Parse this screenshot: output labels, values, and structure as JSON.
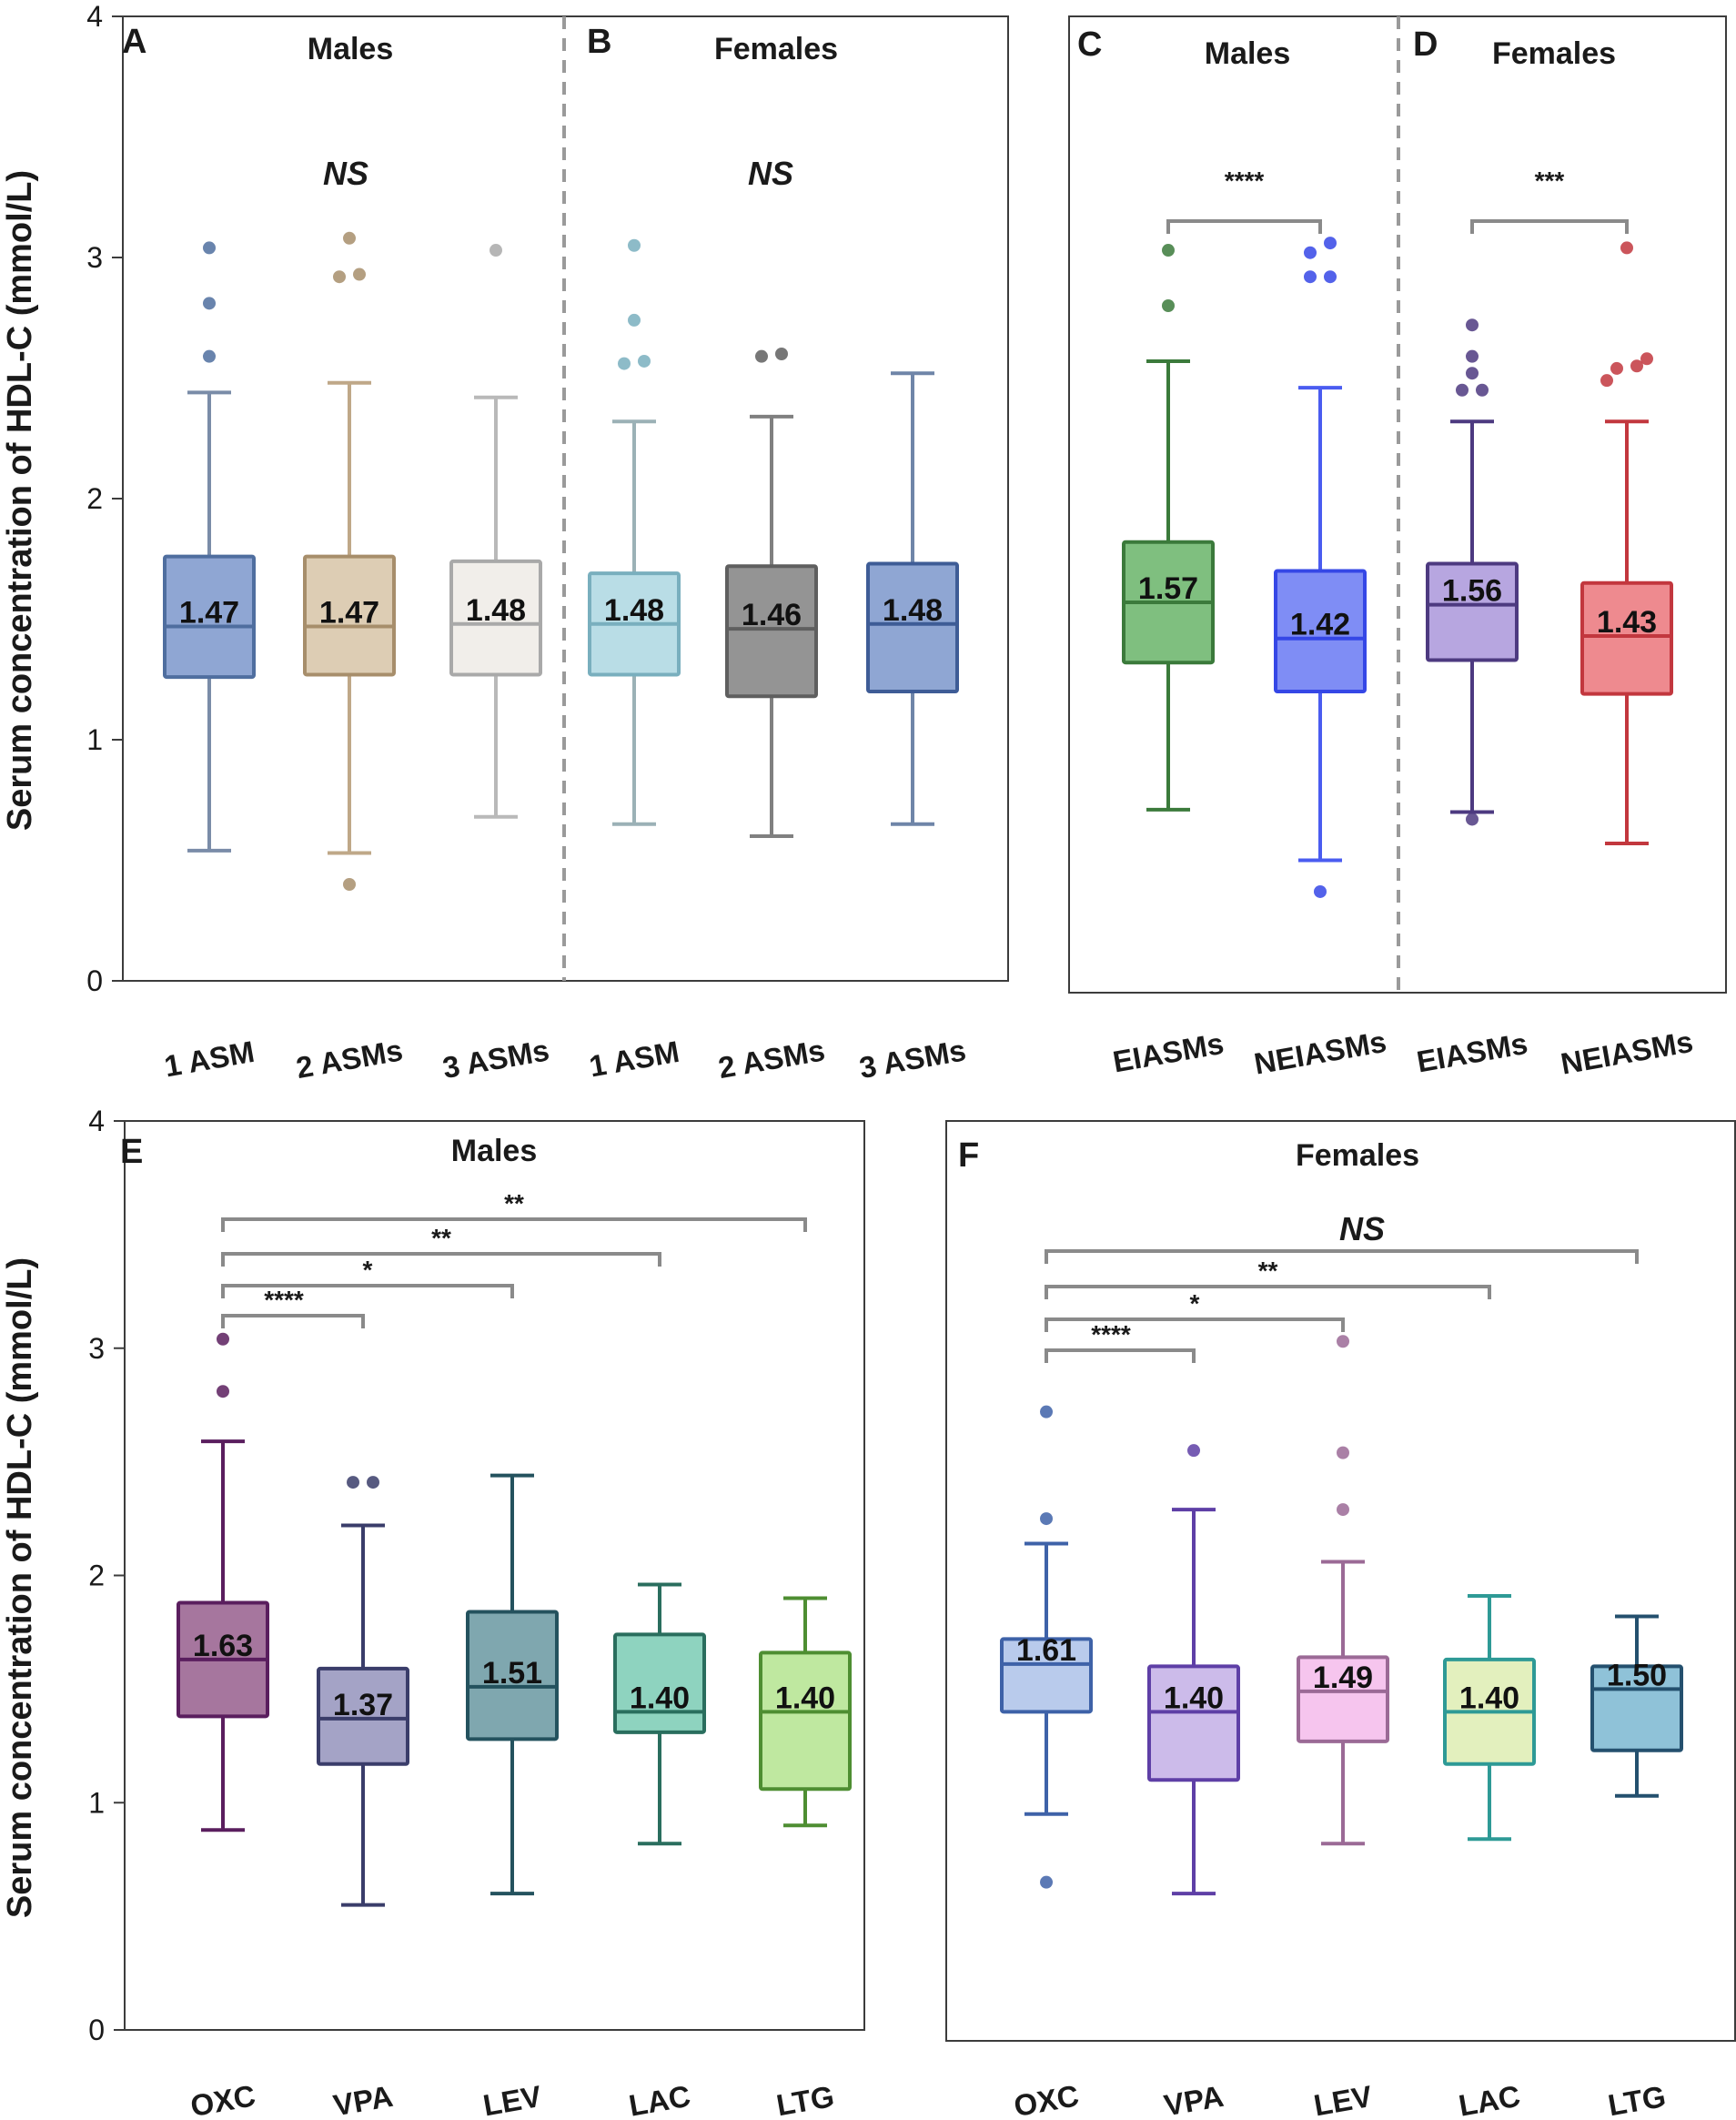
{
  "y_axis_label": "Serum concentration of HDL-C (mmol/L)",
  "chart_data": [
    {
      "type": "box",
      "panels": [
        {
          "letter": "A",
          "title": "Males",
          "title_italic": false,
          "significance": "NS",
          "categories": [
            "1 ASM",
            "2 ASMs",
            "3 ASMs"
          ],
          "boxes": [
            {
              "label": "1.47",
              "color": "#8FA6D3",
              "edge": "#4F6E9F",
              "whisker": "#7A8CA8",
              "q1": 1.26,
              "median": 1.47,
              "q3": 1.76,
              "whisker_low": 0.54,
              "whisker_high": 2.44,
              "outliers": [
                2.59,
                2.81,
                3.04
              ]
            },
            {
              "label": "1.47",
              "color": "#DDCDB4",
              "edge": "#A78E6B",
              "whisker": "#BFA888",
              "q1": 1.27,
              "median": 1.47,
              "q3": 1.76,
              "whisker_low": 0.53,
              "whisker_high": 2.48,
              "outliers": [
                0.4,
                2.92,
                2.93,
                3.08
              ]
            },
            {
              "label": "1.48",
              "color": "#F1EEEA",
              "edge": "#A9A9A9",
              "whisker": "#B9B9B9",
              "q1": 1.27,
              "median": 1.48,
              "q3": 1.74,
              "whisker_low": 0.68,
              "whisker_high": 2.42,
              "outliers": [
                3.03
              ]
            }
          ]
        },
        {
          "letter": "B",
          "title": "Females",
          "title_italic": false,
          "significance": "NS",
          "categories": [
            "1 ASM",
            "2 ASMs",
            "3 ASMs"
          ],
          "boxes": [
            {
              "label": "1.48",
              "color": "#B9DDE6",
              "edge": "#79AFBE",
              "whisker": "#9BB1B6",
              "q1": 1.27,
              "median": 1.48,
              "q3": 1.69,
              "whisker_low": 0.65,
              "whisker_high": 2.32,
              "outliers": [
                2.56,
                2.57,
                2.74,
                3.05
              ]
            },
            {
              "label": "1.46",
              "color": "#949494",
              "edge": "#5F5F5F",
              "whisker": "#808080",
              "q1": 1.18,
              "median": 1.46,
              "q3": 1.72,
              "whisker_low": 0.6,
              "whisker_high": 2.34,
              "outliers": [
                2.59,
                2.6
              ]
            },
            {
              "label": "1.48",
              "color": "#8FA6D3",
              "edge": "#3E5C96",
              "whisker": "#6F85A8",
              "q1": 1.2,
              "median": 1.48,
              "q3": 1.73,
              "whisker_low": 0.65,
              "whisker_high": 2.52,
              "outliers": []
            }
          ]
        }
      ],
      "ylim": [
        0,
        4
      ],
      "yticks": [
        0,
        1,
        2,
        3,
        4
      ]
    },
    {
      "type": "box",
      "panels": [
        {
          "letter": "C",
          "title": "Males",
          "categories": [
            "EIASMs",
            "NEIASMs"
          ],
          "comparison": {
            "stars": "****"
          },
          "boxes": [
            {
              "label": "1.57",
              "color": "#7FBF7F",
              "edge": "#3B7A3B",
              "whisker": "#3B7A3B",
              "q1": 1.32,
              "median": 1.57,
              "q3": 1.82,
              "whisker_low": 0.71,
              "whisker_high": 2.57,
              "outliers": [
                2.8,
                3.03
              ]
            },
            {
              "label": "1.42",
              "color": "#7F8DF5",
              "edge": "#3547E6",
              "whisker": "#4A5CF0",
              "q1": 1.2,
              "median": 1.42,
              "q3": 1.7,
              "whisker_low": 0.5,
              "whisker_high": 2.46,
              "outliers": [
                0.37,
                2.92,
                2.92,
                3.02,
                3.06
              ]
            }
          ]
        },
        {
          "letter": "D",
          "title": "Females",
          "categories": [
            "EIASMs",
            "NEIASMs"
          ],
          "comparison": {
            "stars": "***"
          },
          "boxes": [
            {
              "label": "1.56",
              "color": "#B7A6E0",
              "edge": "#4D3A80",
              "whisker": "#4D3A80",
              "q1": 1.33,
              "median": 1.56,
              "q3": 1.73,
              "whisker_low": 0.7,
              "whisker_high": 2.32,
              "outliers": [
                0.67,
                2.45,
                2.45,
                2.52,
                2.59,
                2.72
              ]
            },
            {
              "label": "1.43",
              "color": "#EE8A8F",
              "edge": "#C2373E",
              "whisker": "#C2373E",
              "q1": 1.19,
              "median": 1.43,
              "q3": 1.65,
              "whisker_low": 0.57,
              "whisker_high": 2.32,
              "outliers": [
                2.49,
                2.54,
                2.55,
                2.58,
                3.04
              ]
            }
          ]
        }
      ],
      "ylim": [
        0,
        4
      ]
    },
    {
      "type": "box",
      "letter": "E",
      "title": "Males",
      "categories": [
        "OXC",
        "VPA",
        "LEV",
        "LAC",
        "LTG"
      ],
      "comparisons": [
        {
          "from": "OXC",
          "to": "VPA",
          "stars": "****"
        },
        {
          "from": "OXC",
          "to": "LEV",
          "stars": "*"
        },
        {
          "from": "OXC",
          "to": "LAC",
          "stars": "**"
        },
        {
          "from": "OXC",
          "to": "LTG",
          "stars": "**"
        }
      ],
      "boxes": [
        {
          "label": "1.63",
          "color": "#A6769E",
          "edge": "#5A1E5E",
          "whisker": "#5A1E5E",
          "q1": 1.38,
          "median": 1.63,
          "q3": 1.88,
          "whisker_low": 0.88,
          "whisker_high": 2.59,
          "outliers": [
            2.81,
            3.04
          ]
        },
        {
          "label": "1.37",
          "color": "#A4A3C6",
          "edge": "#3A3D6A",
          "whisker": "#3A3D6A",
          "q1": 1.17,
          "median": 1.37,
          "q3": 1.59,
          "whisker_low": 0.55,
          "whisker_high": 2.22,
          "outliers": [
            2.41,
            2.41
          ]
        },
        {
          "label": "1.51",
          "color": "#7FA7AF",
          "edge": "#24525E",
          "whisker": "#24525E",
          "q1": 1.28,
          "median": 1.51,
          "q3": 1.84,
          "whisker_low": 0.6,
          "whisker_high": 2.44,
          "outliers": []
        },
        {
          "label": "1.40",
          "color": "#8ED3BF",
          "edge": "#2A6E5E",
          "whisker": "#2A6E5E",
          "q1": 1.31,
          "median": 1.4,
          "q3": 1.74,
          "whisker_low": 0.82,
          "whisker_high": 1.96,
          "outliers": []
        },
        {
          "label": "1.40",
          "color": "#BFE8A0",
          "edge": "#4E8E32",
          "whisker": "#4E8E32",
          "q1": 1.06,
          "median": 1.4,
          "q3": 1.66,
          "whisker_low": 0.9,
          "whisker_high": 1.9,
          "outliers": []
        }
      ],
      "ylim": [
        0,
        4
      ],
      "yticks": [
        0,
        1,
        2,
        3,
        4
      ]
    },
    {
      "type": "box",
      "letter": "F",
      "title": "Females",
      "categories": [
        "OXC",
        "VPA",
        "LEV",
        "LAC",
        "LTG"
      ],
      "comparisons": [
        {
          "from": "OXC",
          "to": "VPA",
          "stars": "****"
        },
        {
          "from": "OXC",
          "to": "LEV",
          "stars": "*"
        },
        {
          "from": "OXC",
          "to": "LAC",
          "stars": "**"
        },
        {
          "from": "OXC",
          "to": "LTG",
          "stars": "NS"
        }
      ],
      "boxes": [
        {
          "label": "1.61",
          "color": "#B9CBEC",
          "edge": "#3E62A8",
          "whisker": "#3E62A8",
          "q1": 1.4,
          "median": 1.61,
          "q3": 1.72,
          "whisker_low": 0.95,
          "whisker_high": 2.14,
          "outliers": [
            0.65,
            2.25,
            2.72
          ]
        },
        {
          "label": "1.40",
          "color": "#CCBBEA",
          "edge": "#5E3FA6",
          "whisker": "#5E3FA6",
          "q1": 1.1,
          "median": 1.4,
          "q3": 1.6,
          "whisker_low": 0.6,
          "whisker_high": 2.29,
          "outliers": [
            2.55
          ]
        },
        {
          "label": "1.49",
          "color": "#F6C5EE",
          "edge": "#9B6A96",
          "whisker": "#9B6A96",
          "q1": 1.27,
          "median": 1.49,
          "q3": 1.64,
          "whisker_low": 0.82,
          "whisker_high": 2.06,
          "outliers": [
            2.29,
            2.54,
            3.03
          ]
        },
        {
          "label": "1.40",
          "color": "#E3F0BE",
          "edge": "#2E9A96",
          "whisker": "#2E9A96",
          "q1": 1.17,
          "median": 1.4,
          "q3": 1.63,
          "whisker_low": 0.84,
          "whisker_high": 1.91,
          "outliers": []
        },
        {
          "label": "1.50",
          "color": "#8FC2D8",
          "edge": "#24506E",
          "whisker": "#24506E",
          "q1": 1.23,
          "median": 1.5,
          "q3": 1.6,
          "whisker_low": 1.03,
          "whisker_high": 1.82,
          "outliers": []
        }
      ],
      "ylim": [
        0,
        4
      ]
    }
  ]
}
